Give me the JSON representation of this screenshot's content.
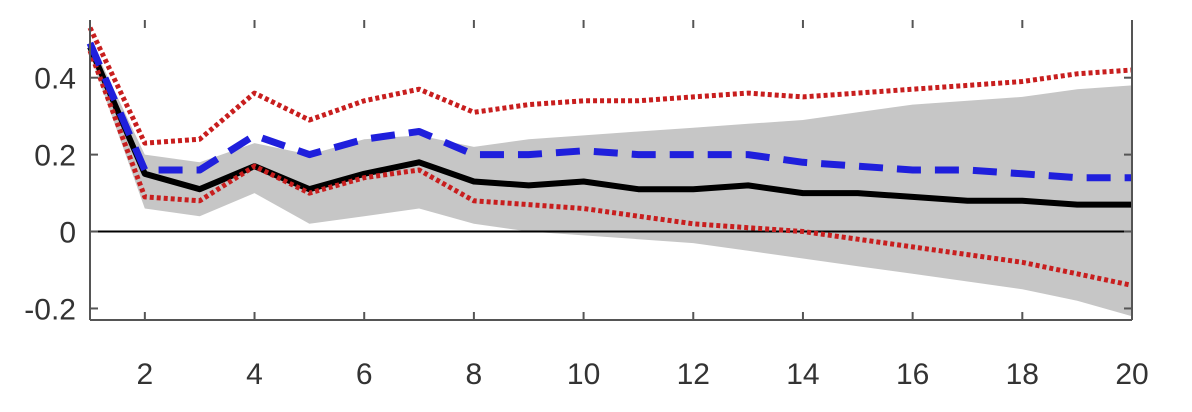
{
  "chart_data": {
    "type": "line",
    "title": "",
    "xlabel": "",
    "ylabel": "",
    "xlim": [
      1,
      20
    ],
    "ylim": [
      -0.23,
      0.55
    ],
    "x_ticks": [
      2,
      4,
      6,
      8,
      10,
      12,
      14,
      16,
      18,
      20
    ],
    "y_ticks": [
      -0.2,
      0,
      0.2,
      0.4
    ],
    "x_tick_labels": [
      "2",
      "4",
      "6",
      "8",
      "10",
      "12",
      "14",
      "16",
      "18",
      "20"
    ],
    "y_tick_labels": [
      "-0.2",
      "0",
      "0.2",
      "0.4"
    ],
    "grid": false,
    "legend": "none",
    "x": [
      1,
      2,
      3,
      4,
      5,
      6,
      7,
      8,
      9,
      10,
      11,
      12,
      13,
      14,
      15,
      16,
      17,
      18,
      19,
      20
    ],
    "series": [
      {
        "style": "solid",
        "color": "#000000",
        "values": [
          0.48,
          0.15,
          0.11,
          0.17,
          0.11,
          0.15,
          0.18,
          0.13,
          0.12,
          0.13,
          0.11,
          0.11,
          0.12,
          0.1,
          0.1,
          0.09,
          0.08,
          0.08,
          0.07,
          0.07
        ]
      },
      {
        "style": "dashed",
        "color": "#1f1fdc",
        "values": [
          0.49,
          0.16,
          0.16,
          0.25,
          0.2,
          0.24,
          0.26,
          0.2,
          0.2,
          0.21,
          0.2,
          0.2,
          0.2,
          0.18,
          0.17,
          0.16,
          0.16,
          0.15,
          0.14,
          0.14
        ]
      },
      {
        "style": "dotted",
        "color": "#c81e1e",
        "values": [
          0.53,
          0.23,
          0.24,
          0.36,
          0.29,
          0.34,
          0.37,
          0.31,
          0.33,
          0.34,
          0.34,
          0.35,
          0.36,
          0.35,
          0.36,
          0.37,
          0.38,
          0.39,
          0.41,
          0.42
        ]
      },
      {
        "style": "dotted",
        "color": "#c81e1e",
        "values": [
          0.47,
          0.09,
          0.08,
          0.17,
          0.1,
          0.14,
          0.16,
          0.08,
          0.07,
          0.06,
          0.04,
          0.02,
          0.01,
          0.0,
          -0.02,
          -0.04,
          -0.06,
          -0.08,
          -0.11,
          -0.14
        ]
      }
    ],
    "band": {
      "color": "#c6c6c6",
      "lower": [
        0.46,
        0.06,
        0.04,
        0.1,
        0.02,
        0.04,
        0.06,
        0.02,
        0.0,
        -0.01,
        -0.02,
        -0.03,
        -0.05,
        -0.07,
        -0.09,
        -0.11,
        -0.13,
        -0.15,
        -0.18,
        -0.22
      ],
      "upper": [
        0.5,
        0.2,
        0.18,
        0.23,
        0.2,
        0.24,
        0.25,
        0.22,
        0.24,
        0.25,
        0.26,
        0.27,
        0.28,
        0.29,
        0.31,
        0.33,
        0.34,
        0.35,
        0.37,
        0.38
      ]
    },
    "zero_line": {
      "y": 0,
      "color": "#000000"
    },
    "axis_color": "#555555"
  }
}
